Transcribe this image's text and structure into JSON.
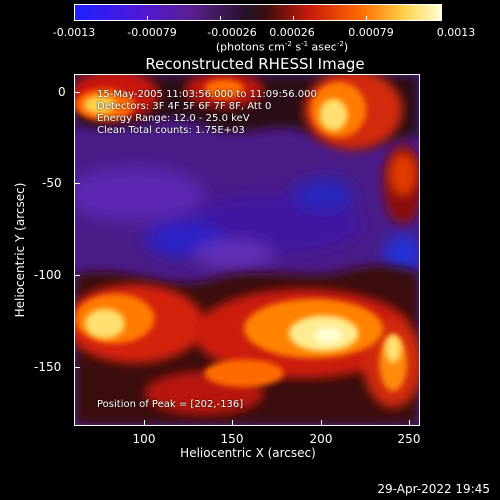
{
  "colorbar": {
    "ticks": [
      "-0.0013",
      "-0.00079",
      "-0.00026",
      "0.00026",
      "0.00079",
      "0.0013"
    ],
    "unit_prefix": "(photons cm",
    "unit_exp1": "-2",
    "unit_mid1": " s",
    "unit_exp2": "-1",
    "unit_mid2": " asec",
    "unit_exp3": "-2",
    "unit_suffix": ")"
  },
  "title": "Reconstructed RHESSI Image",
  "overlay": {
    "line1": "15-May-2005 11:03:56.000 to 11:09:56.000",
    "line2": "Detectors: 3F 4F 5F 6F 7F 8F, Att 0",
    "line3": "Energy Range: 12.0 - 25.0 keV",
    "line4": "Clean    Total counts: 1.75E+03",
    "peak": "Position of Peak = [202,-136]"
  },
  "axes": {
    "ylabel": "Heliocentric Y (arcsec)",
    "xlabel": "Heliocentric X (arcsec)",
    "yticks": [
      "0",
      "-50",
      "-100",
      "-150"
    ],
    "xticks": [
      "100",
      "150",
      "200",
      "250"
    ]
  },
  "datestamp": "29-Apr-2022 19:45"
}
